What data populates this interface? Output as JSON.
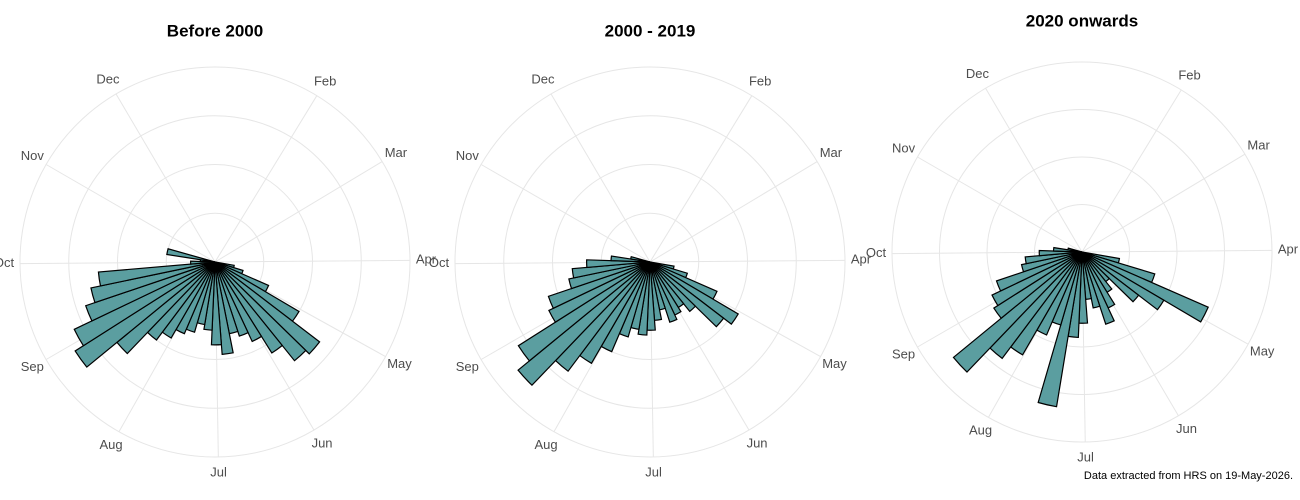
{
  "chart_data": [
    {
      "type": "polar_bar",
      "title": "Before 2000",
      "color": "#5b9ea0",
      "x": [
        105,
        112,
        119,
        126,
        133,
        140,
        147,
        154,
        161,
        168,
        175,
        182,
        189,
        196,
        203,
        210,
        217,
        224,
        231,
        238,
        245,
        252,
        259,
        266,
        273,
        280,
        287
      ],
      "values": [
        0.4,
        0.6,
        1.2,
        2.0,
        2.7,
        2.6,
        2.2,
        1.8,
        1.6,
        1.5,
        1.9,
        1.7,
        1.4,
        1.3,
        1.5,
        1.6,
        1.8,
        2.0,
        2.6,
        3.4,
        3.2,
        2.8,
        2.6,
        2.4,
        0.5,
        0.3,
        1.0
      ],
      "xlim": [
        0,
        366
      ],
      "xticks": [
        {
          "value": 32,
          "label": "Feb"
        },
        {
          "value": 60,
          "label": "Mar"
        },
        {
          "value": 91,
          "label": "Apr"
        },
        {
          "value": 121,
          "label": "May"
        },
        {
          "value": 152,
          "label": "Jun"
        },
        {
          "value": 182,
          "label": "Jul"
        },
        {
          "value": 213,
          "label": "Aug"
        },
        {
          "value": 244,
          "label": "Sep"
        },
        {
          "value": 274,
          "label": "Oct"
        },
        {
          "value": 305,
          "label": "Nov"
        },
        {
          "value": 335,
          "label": "Dec"
        }
      ],
      "ylim": [
        0,
        4
      ],
      "yticks": [
        1,
        2,
        3,
        4
      ],
      "grid": true
    },
    {
      "type": "polar_bar",
      "title": "2000 - 2019",
      "color": "#5b9ea0",
      "x": [
        105,
        112,
        119,
        126,
        133,
        140,
        147,
        154,
        161,
        168,
        175,
        182,
        189,
        196,
        203,
        210,
        217,
        224,
        231,
        238,
        245,
        252,
        259,
        266,
        273,
        280,
        287
      ],
      "values": [
        0.5,
        0.8,
        1.5,
        2.1,
        1.9,
        1.3,
        1.1,
        1.2,
        1.3,
        1.0,
        1.2,
        1.4,
        1.5,
        1.4,
        1.6,
        2.0,
        2.4,
        2.8,
        3.5,
        3.2,
        2.3,
        2.2,
        1.7,
        1.6,
        1.3,
        0.8,
        0.4
      ],
      "xlim": [
        0,
        366
      ],
      "xticks": [
        {
          "value": 32,
          "label": "Feb"
        },
        {
          "value": 60,
          "label": "Mar"
        },
        {
          "value": 91,
          "label": "Apr"
        },
        {
          "value": 121,
          "label": "May"
        },
        {
          "value": 152,
          "label": "Jun"
        },
        {
          "value": 182,
          "label": "Jul"
        },
        {
          "value": 213,
          "label": "Aug"
        },
        {
          "value": 244,
          "label": "Sep"
        },
        {
          "value": 274,
          "label": "Oct"
        },
        {
          "value": 305,
          "label": "Nov"
        },
        {
          "value": 335,
          "label": "Dec"
        }
      ],
      "ylim": [
        0,
        4
      ],
      "yticks": [
        1,
        2,
        3,
        4
      ],
      "grid": true
    },
    {
      "type": "polar_bar",
      "title": "2020 onwards",
      "color": "#5b9ea0",
      "x": [
        105,
        112,
        119,
        126,
        133,
        140,
        147,
        154,
        161,
        168,
        175,
        182,
        189,
        196,
        203,
        210,
        217,
        224,
        231,
        238,
        245,
        252,
        259,
        266,
        273,
        280,
        287
      ],
      "values": [
        0.8,
        1.6,
        2.9,
        2.0,
        1.5,
        0.8,
        1.0,
        1.3,
        1.6,
        1.2,
        1.0,
        1.5,
        1.8,
        3.3,
        1.6,
        1.9,
        2.5,
        2.8,
        3.5,
        2.2,
        2.1,
        1.9,
        1.3,
        1.2,
        0.9,
        0.6,
        0.3
      ],
      "xlim": [
        0,
        366
      ],
      "xticks": [
        {
          "value": 32,
          "label": "Feb"
        },
        {
          "value": 60,
          "label": "Mar"
        },
        {
          "value": 91,
          "label": "Apr"
        },
        {
          "value": 121,
          "label": "May"
        },
        {
          "value": 152,
          "label": "Jun"
        },
        {
          "value": 182,
          "label": "Jul"
        },
        {
          "value": 213,
          "label": "Aug"
        },
        {
          "value": 244,
          "label": "Sep"
        },
        {
          "value": 274,
          "label": "Oct"
        },
        {
          "value": 305,
          "label": "Nov"
        },
        {
          "value": 335,
          "label": "Dec"
        }
      ],
      "ylim": [
        0,
        4
      ],
      "yticks": [
        1,
        2,
        3,
        4
      ],
      "grid": true
    }
  ],
  "caption": "Data extracted from HRS on 19-May-2026."
}
